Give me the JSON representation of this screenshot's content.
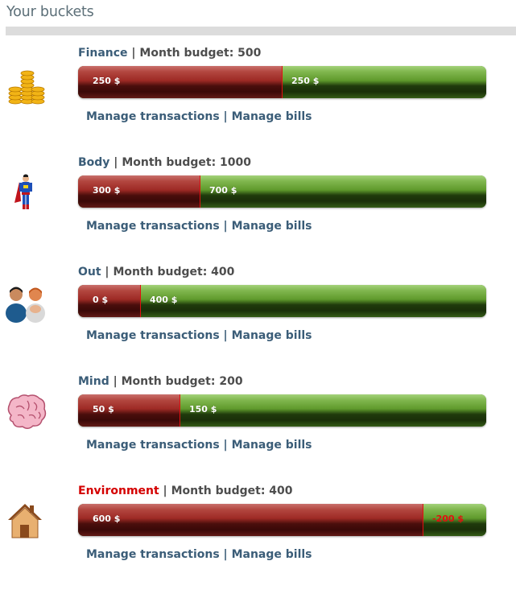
{
  "page": {
    "title": "Your buckets"
  },
  "buckets": [
    {
      "name": "Finance",
      "budget_label": "Month budget: 500",
      "budget": 500,
      "spent": 250,
      "left": 250,
      "spent_label": "250 $",
      "left_label": "250 $",
      "icon": "coins-icon",
      "over_budget": false,
      "links": [
        "Manage transactions",
        "Manage bills"
      ]
    },
    {
      "name": "Body",
      "budget_label": "Month budget: 1000",
      "budget": 1000,
      "spent": 300,
      "left": 700,
      "spent_label": "300 $",
      "left_label": "700 $",
      "icon": "superhero-icon",
      "over_budget": false,
      "links": [
        "Manage transactions",
        "Manage bills"
      ]
    },
    {
      "name": "Out",
      "budget_label": "Month budget: 400",
      "budget": 400,
      "spent": 0,
      "left": 400,
      "spent_label": "0 $",
      "left_label": "400 $",
      "icon": "people-icon",
      "over_budget": false,
      "links": [
        "Manage transactions",
        "Manage bills"
      ]
    },
    {
      "name": "Mind",
      "budget_label": "Month budget: 200",
      "budget": 200,
      "spent": 50,
      "left": 150,
      "spent_label": "50 $",
      "left_label": "150 $",
      "icon": "brain-icon",
      "over_budget": false,
      "links": [
        "Manage transactions",
        "Manage bills"
      ]
    },
    {
      "name": "Environment",
      "budget_label": "Month budget: 400",
      "budget": 400,
      "spent": 600,
      "left": -200,
      "spent_label": "600 $",
      "left_label": "-200 $",
      "icon": "house-icon",
      "over_budget": true,
      "links": [
        "Manage transactions",
        "Manage bills"
      ]
    }
  ],
  "colors": {
    "title": "#5c6f78",
    "link": "#3b5d78",
    "over_budget": "#d40000",
    "spent_bar": "#9e2a25",
    "remaining_bar": "#5f9a2c"
  }
}
